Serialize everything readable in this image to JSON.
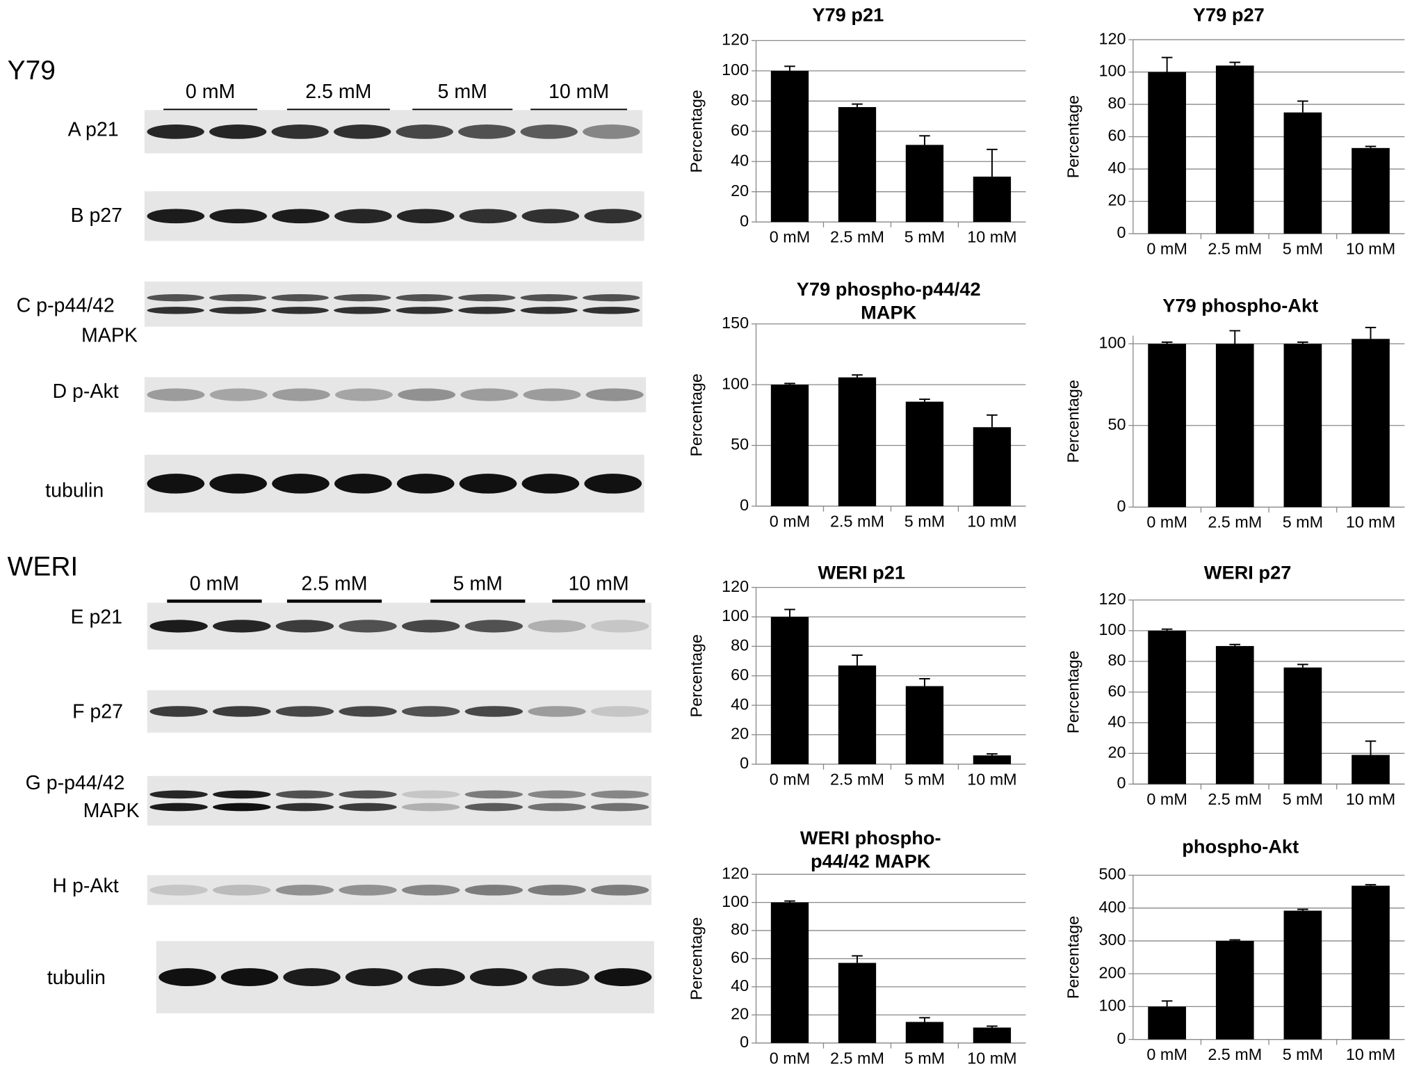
{
  "blots": [
    {
      "cell_line": "Y79",
      "concentrations": [
        "0 mM",
        "2.5 mM",
        "5 mM",
        "10 mM"
      ],
      "rows": [
        [
          "A p21"
        ],
        [
          "B p27"
        ],
        [
          "C p-p44/42",
          "MAPK"
        ],
        [
          "D p-Akt"
        ],
        [
          "tubulin"
        ]
      ]
    },
    {
      "cell_line": "WERI",
      "concentrations": [
        "0 mM",
        "2.5 mM",
        "5 mM",
        "10 mM"
      ],
      "rows": [
        [
          "E p21"
        ],
        [
          "F p27"
        ],
        [
          "G p-p44/42",
          "MAPK"
        ],
        [
          "H p-Akt"
        ],
        [
          "tubulin"
        ]
      ]
    }
  ],
  "chart_data": [
    {
      "type": "bar",
      "title": [
        "Y79 p21"
      ],
      "ylabel": "Percentage",
      "categories": [
        "0 mM",
        "2.5 mM",
        "5 mM",
        "10 mM"
      ],
      "values": [
        100,
        76,
        51,
        30
      ],
      "errors": [
        3,
        2,
        6,
        18
      ],
      "color": "#000000",
      "ylim": [
        0,
        120
      ],
      "yticks": [
        0,
        20,
        40,
        60,
        80,
        100,
        120
      ],
      "grid": true
    },
    {
      "type": "bar",
      "title": [
        "Y79 p27"
      ],
      "ylabel": "Percentage",
      "categories": [
        "0 mM",
        "2.5 mM",
        "5 mM",
        "10 mM"
      ],
      "values": [
        100,
        104,
        75,
        53
      ],
      "errors": [
        9,
        2,
        7,
        1
      ],
      "color": "#000000",
      "ylim": [
        0,
        120
      ],
      "yticks": [
        0,
        20,
        40,
        60,
        80,
        100,
        120
      ],
      "grid": true
    },
    {
      "type": "bar",
      "title": [
        "Y79 phospho-p44/42",
        "MAPK"
      ],
      "ylabel": "Percentage",
      "categories": [
        "0 mM",
        "2.5 mM",
        "5 mM",
        "10 mM"
      ],
      "values": [
        100,
        106,
        86,
        65
      ],
      "errors": [
        1,
        2,
        2,
        10
      ],
      "color": "#000000",
      "ylim": [
        0,
        150
      ],
      "yticks": [
        0,
        50,
        100,
        150
      ],
      "grid": true
    },
    {
      "type": "bar",
      "title": [
        "Y79 phospho-Akt"
      ],
      "ylabel": "Percentage",
      "categories": [
        "0 mM",
        "2.5 mM",
        "5 mM",
        "10 mM"
      ],
      "values": [
        100,
        100,
        100,
        103
      ],
      "errors": [
        1,
        8,
        1,
        7
      ],
      "color": "#000000",
      "ylim": [
        0,
        105
      ],
      "yticks": [
        0,
        50,
        100
      ],
      "grid": true
    },
    {
      "type": "bar",
      "title": [
        "WERI p21"
      ],
      "ylabel": "Percentage",
      "categories": [
        "0 mM",
        "2.5 mM",
        "5 mM",
        "10 mM"
      ],
      "values": [
        100,
        67,
        53,
        6
      ],
      "errors": [
        5,
        7,
        5,
        1
      ],
      "color": "#000000",
      "ylim": [
        0,
        120
      ],
      "yticks": [
        0,
        20,
        40,
        60,
        80,
        100,
        120
      ],
      "grid": true
    },
    {
      "type": "bar",
      "title": [
        "WERI p27"
      ],
      "ylabel": "Percentage",
      "categories": [
        "0 mM",
        "2.5 mM",
        "5 mM",
        "10 mM"
      ],
      "values": [
        100,
        90,
        76,
        19
      ],
      "errors": [
        1,
        1,
        2,
        9
      ],
      "color": "#000000",
      "ylim": [
        0,
        120
      ],
      "yticks": [
        0,
        20,
        40,
        60,
        80,
        100,
        120
      ],
      "grid": true
    },
    {
      "type": "bar",
      "title": [
        "WERI phospho-",
        "p44/42 MAPK"
      ],
      "ylabel": "Percentage",
      "categories": [
        "0 mM",
        "2.5 mM",
        "5 mM",
        "10 mM"
      ],
      "values": [
        100,
        57,
        15,
        11
      ],
      "errors": [
        1,
        5,
        3,
        1
      ],
      "color": "#000000",
      "ylim": [
        0,
        120
      ],
      "yticks": [
        0,
        20,
        40,
        60,
        80,
        100,
        120
      ],
      "grid": true
    },
    {
      "type": "bar",
      "title": [
        "phospho-Akt"
      ],
      "ylabel": "Percentage",
      "categories": [
        "0 mM",
        "2.5 mM",
        "5 mM",
        "10 mM"
      ],
      "values": [
        100,
        300,
        392,
        468
      ],
      "errors": [
        17,
        3,
        4,
        3
      ],
      "color": "#000000",
      "ylim": [
        0,
        500
      ],
      "yticks": [
        0,
        100,
        200,
        300,
        400,
        500
      ],
      "grid": true
    }
  ]
}
